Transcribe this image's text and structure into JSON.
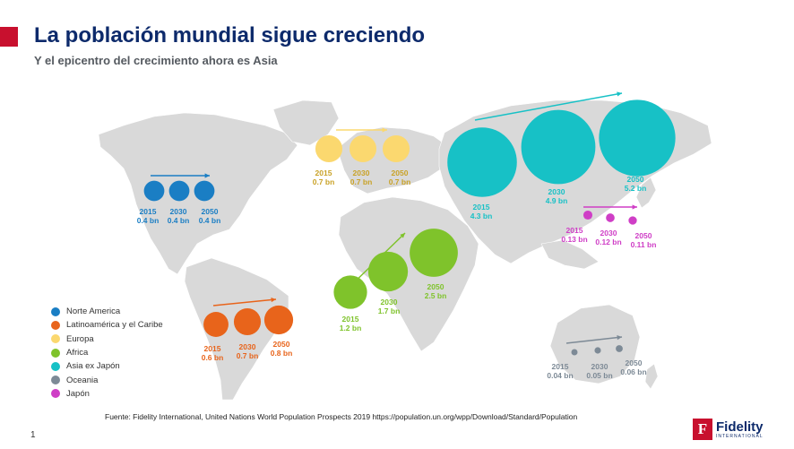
{
  "header": {
    "title": "La población mundial sigue creciendo",
    "subtitle": "Y el epicentro del crecimiento ahora es Asia"
  },
  "colors": {
    "brand_red": "#c8102e",
    "title_blue": "#0d2a6b",
    "map_land": "#d9d9d9"
  },
  "regions": [
    {
      "key": "na",
      "name": "Norte America",
      "color": "#1a7ec4",
      "points": [
        {
          "year": "2015",
          "value": "0.4 bn",
          "pop": 0.4
        },
        {
          "year": "2030",
          "value": "0.4 bn",
          "pop": 0.4
        },
        {
          "year": "2050",
          "value": "0.4 bn",
          "pop": 0.4
        }
      ]
    },
    {
      "key": "lat",
      "name": "Latinoamérica y el Caribe",
      "color": "#e8641b",
      "points": [
        {
          "year": "2015",
          "value": "0.6 bn",
          "pop": 0.6
        },
        {
          "year": "2030",
          "value": "0.7 bn",
          "pop": 0.7
        },
        {
          "year": "2050",
          "value": "0.8 bn",
          "pop": 0.8
        }
      ]
    },
    {
      "key": "eu",
      "name": "Europa",
      "color": "#fbd86f",
      "points": [
        {
          "year": "2015",
          "value": "0.7 bn",
          "pop": 0.7
        },
        {
          "year": "2030",
          "value": "0.7 bn",
          "pop": 0.7
        },
        {
          "year": "2050",
          "value": "0.7 bn",
          "pop": 0.7
        }
      ]
    },
    {
      "key": "af",
      "name": "Africa",
      "color": "#7fc32b",
      "points": [
        {
          "year": "2015",
          "value": "1.2 bn",
          "pop": 1.2
        },
        {
          "year": "2030",
          "value": "1.7 bn",
          "pop": 1.7
        },
        {
          "year": "2050",
          "value": "2.5 bn",
          "pop": 2.5
        }
      ]
    },
    {
      "key": "as",
      "name": "Asia ex Japón",
      "color": "#17c1c6",
      "points": [
        {
          "year": "2015",
          "value": "4.3 bn",
          "pop": 4.3
        },
        {
          "year": "2030",
          "value": "4.9 bn",
          "pop": 4.9
        },
        {
          "year": "2050",
          "value": "5.2 bn",
          "pop": 5.2
        }
      ]
    },
    {
      "key": "oc",
      "name": "Oceania",
      "color": "#7d8a96",
      "points": [
        {
          "year": "2015",
          "value": "0.04 bn",
          "pop": 0.04
        },
        {
          "year": "2030",
          "value": "0.05 bn",
          "pop": 0.05
        },
        {
          "year": "2050",
          "value": "0.06 bn",
          "pop": 0.06
        }
      ]
    },
    {
      "key": "jp",
      "name": "Japón",
      "color": "#cf3ec6",
      "points": [
        {
          "year": "2015",
          "value": "0.13 bn",
          "pop": 0.13
        },
        {
          "year": "2030",
          "value": "0.12 bn",
          "pop": 0.12
        },
        {
          "year": "2050",
          "value": "0.11 bn",
          "pop": 0.11
        }
      ]
    }
  ],
  "footer": {
    "source": "Fuente: Fidelity International, United Nations World Population Prospects 2019 https://population.un.org/wpp/Download/Standard/Population",
    "page": "1",
    "logo_text": "Fidelity",
    "logo_sub": "INTERNATIONAL"
  }
}
